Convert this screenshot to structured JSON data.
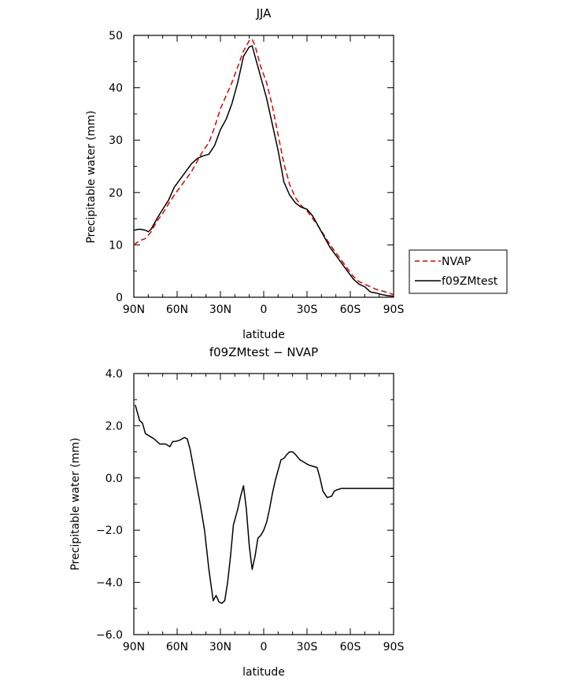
{
  "chart_data": [
    {
      "type": "line",
      "title": "JJA",
      "xlabel": "latitude",
      "ylabel": "Precipitable water (mm)",
      "xlim": [
        -90,
        90
      ],
      "ylim": [
        0,
        50
      ],
      "x_ticks": [
        -90,
        -60,
        -30,
        0,
        30,
        60,
        90
      ],
      "x_tick_labels": [
        "90N",
        "60N",
        "30N",
        "0",
        "30S",
        "60S",
        "90S"
      ],
      "y_ticks": [
        0,
        10,
        20,
        30,
        40,
        50
      ],
      "y_tick_labels": [
        "0",
        "10",
        "20",
        "30",
        "40",
        "50"
      ],
      "grid": false,
      "legend": {
        "placement": "right",
        "entries": [
          "NVAP",
          "f09ZMtest"
        ]
      },
      "series": [
        {
          "name": "NVAP",
          "color": "#e00000",
          "dash": "dashed",
          "x": [
            -90,
            -86,
            -82,
            -78,
            -74,
            -70,
            -66,
            -62,
            -58,
            -54,
            -50,
            -46,
            -42,
            -38,
            -34,
            -30,
            -26,
            -22,
            -18,
            -14,
            -10,
            -8,
            -6,
            -4,
            -2,
            0,
            2,
            6,
            10,
            14,
            18,
            22,
            26,
            30,
            34,
            38,
            42,
            46,
            50,
            54,
            58,
            62,
            66,
            70,
            74,
            78,
            82,
            86,
            90
          ],
          "y": [
            10.0,
            10.8,
            11.2,
            12.5,
            14.5,
            16.0,
            17.8,
            19.5,
            21.0,
            22.5,
            24.0,
            26.0,
            28.0,
            29.5,
            32.5,
            36.0,
            38.5,
            41.0,
            44.0,
            47.0,
            49.0,
            49.3,
            48.0,
            46.0,
            44.0,
            42.5,
            41.0,
            36.5,
            31.0,
            25.5,
            21.5,
            19.0,
            17.5,
            16.5,
            15.0,
            13.5,
            11.8,
            10.0,
            8.5,
            7.0,
            5.5,
            4.0,
            3.0,
            2.5,
            2.0,
            1.5,
            1.2,
            0.9,
            0.5
          ]
        },
        {
          "name": "f09ZMtest",
          "color": "#000000",
          "dash": "solid",
          "x": [
            -90,
            -86,
            -82,
            -80,
            -78,
            -74,
            -70,
            -66,
            -62,
            -58,
            -54,
            -50,
            -46,
            -42,
            -38,
            -34,
            -30,
            -26,
            -22,
            -18,
            -14,
            -10,
            -8,
            -6,
            -4,
            -2,
            0,
            2,
            6,
            10,
            14,
            18,
            22,
            26,
            30,
            34,
            38,
            42,
            46,
            50,
            54,
            58,
            62,
            66,
            70,
            74,
            78,
            82,
            86,
            90
          ],
          "y": [
            12.8,
            13.0,
            12.8,
            12.5,
            13.0,
            15.0,
            16.8,
            18.5,
            21.0,
            22.5,
            24.0,
            25.5,
            26.5,
            27.0,
            27.3,
            29.0,
            32.0,
            34.0,
            37.0,
            41.0,
            46.0,
            47.8,
            48.0,
            46.0,
            44.0,
            42.0,
            40.0,
            38.0,
            33.0,
            28.0,
            22.0,
            19.5,
            18.0,
            17.2,
            16.8,
            15.5,
            13.5,
            11.5,
            9.5,
            8.0,
            6.5,
            5.0,
            3.5,
            2.5,
            2.0,
            1.0,
            0.8,
            0.5,
            0.3,
            0.2
          ]
        }
      ]
    },
    {
      "type": "line",
      "title": "f09ZMtest − NVAP",
      "xlabel": "latitude",
      "ylabel": "Precipitable water (mm)",
      "xlim": [
        -90,
        90
      ],
      "ylim": [
        -6,
        4
      ],
      "x_ticks": [
        -90,
        -60,
        -30,
        0,
        30,
        60,
        90
      ],
      "x_tick_labels": [
        "90N",
        "60N",
        "30N",
        "0",
        "30S",
        "60S",
        "90S"
      ],
      "y_ticks": [
        -6,
        -4,
        -2,
        0,
        2,
        4
      ],
      "y_tick_labels": [
        "−6.0",
        "−4.0",
        "−2.0",
        "0.0",
        "2.0",
        "4.0"
      ],
      "grid": false,
      "series": [
        {
          "name": "",
          "color": "#000000",
          "dash": "solid",
          "x": [
            -89,
            -86,
            -84,
            -82,
            -79,
            -76,
            -72,
            -68,
            -65,
            -63,
            -61,
            -58,
            -55,
            -53,
            -51,
            -49,
            -47,
            -44,
            -41,
            -38,
            -35,
            -33,
            -31,
            -29,
            -27,
            -25,
            -23,
            -21,
            -18,
            -16,
            -14,
            -12,
            -10,
            -8,
            -6,
            -4,
            -2,
            0,
            2,
            4,
            6,
            8,
            10,
            12,
            14,
            16,
            18,
            20,
            22,
            25,
            28,
            31,
            34,
            37,
            39,
            41,
            44,
            47,
            49,
            51,
            54,
            56,
            59,
            61,
            64,
            67,
            70,
            73,
            75,
            78,
            81,
            84,
            87,
            90
          ],
          "y": [
            2.8,
            2.2,
            2.1,
            1.7,
            1.6,
            1.5,
            1.3,
            1.3,
            1.2,
            1.4,
            1.4,
            1.45,
            1.55,
            1.5,
            1.1,
            0.5,
            -0.1,
            -1.0,
            -2.0,
            -3.5,
            -4.7,
            -4.5,
            -4.75,
            -4.8,
            -4.7,
            -4.0,
            -3.0,
            -1.8,
            -1.2,
            -0.7,
            -0.3,
            -1.2,
            -2.6,
            -3.5,
            -3.0,
            -2.3,
            -2.2,
            -2.0,
            -1.7,
            -1.2,
            -0.6,
            -0.1,
            0.3,
            0.7,
            0.75,
            0.9,
            1.0,
            1.0,
            0.9,
            0.7,
            0.6,
            0.5,
            0.45,
            0.4,
            0.0,
            -0.5,
            -0.75,
            -0.7,
            -0.5,
            -0.45,
            -0.4,
            -0.4,
            -0.4,
            -0.4,
            -0.4,
            -0.4,
            -0.4,
            -0.4,
            -0.4,
            -0.4,
            -0.4,
            -0.4,
            -0.4,
            -0.4
          ]
        }
      ]
    }
  ]
}
